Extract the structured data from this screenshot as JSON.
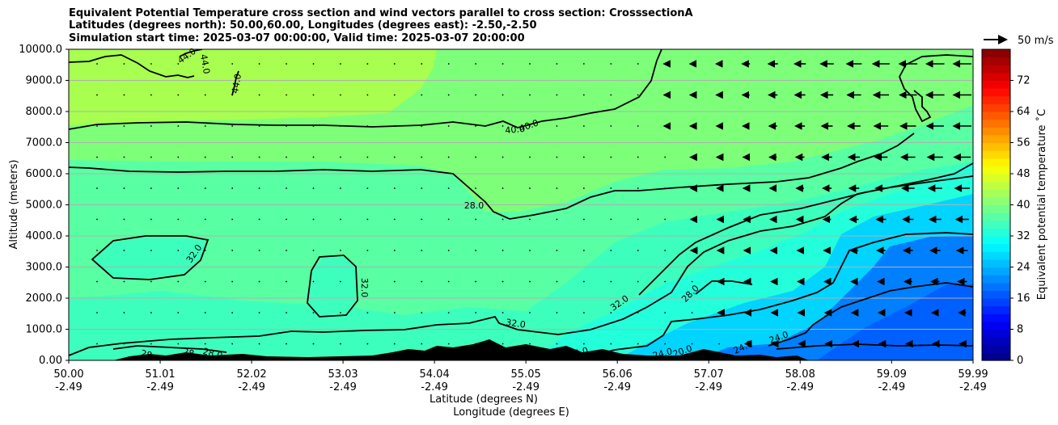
{
  "header": {
    "title_line1": "Equivalent Potential Temperature cross section and wind vectors parallel to cross section: CrosssectionA",
    "title_line2": "Latitudes (degrees north): 50.00,60.00, Longitudes (degrees east): -2.50,-2.50",
    "title_line3": "Simulation start time: 2025-03-07 00:00:00, Valid time: 2025-03-07 20:00:00"
  },
  "wind_key": {
    "label": "50 m/s"
  },
  "chart_data": {
    "type": "heatmap",
    "xlabel_line1": "Latitude (degrees N)",
    "xlabel_line2": "Longitude (degrees E)",
    "ylabel": "Altitude (meters)",
    "colorbar_label": "Equivalent potential temperature ˚C",
    "xlim": [
      50.0,
      59.99
    ],
    "ylim": [
      0,
      10000
    ],
    "x_ticks": [
      {
        "lat": "50.00",
        "lon": "-2.49",
        "value": 50.0
      },
      {
        "lat": "51.01",
        "lon": "-2.49",
        "value": 51.01
      },
      {
        "lat": "52.02",
        "lon": "-2.49",
        "value": 52.02
      },
      {
        "lat": "53.03",
        "lon": "-2.49",
        "value": 53.03
      },
      {
        "lat": "54.04",
        "lon": "-2.49",
        "value": 54.04
      },
      {
        "lat": "55.05",
        "lon": "-2.49",
        "value": 55.05
      },
      {
        "lat": "56.06",
        "lon": "-2.49",
        "value": 56.06
      },
      {
        "lat": "57.07",
        "lon": "-2.49",
        "value": 57.07
      },
      {
        "lat": "58.08",
        "lon": "-2.49",
        "value": 58.08
      },
      {
        "lat": "59.09",
        "lon": "-2.49",
        "value": 59.09
      },
      {
        "lat": "59.99",
        "lon": "-2.49",
        "value": 59.99
      }
    ],
    "y_ticks": [
      {
        "label": "0.00",
        "value": 0
      },
      {
        "label": "1000.0",
        "value": 1000
      },
      {
        "label": "2000.0",
        "value": 2000
      },
      {
        "label": "3000.0",
        "value": 3000
      },
      {
        "label": "4000.0",
        "value": 4000
      },
      {
        "label": "5000.0",
        "value": 5000
      },
      {
        "label": "6000.0",
        "value": 6000
      },
      {
        "label": "7000.0",
        "value": 7000
      },
      {
        "label": "8000.0",
        "value": 8000
      },
      {
        "label": "9000.0",
        "value": 9000
      },
      {
        "label": "10000.0",
        "value": 10000
      }
    ],
    "grid": "horizontal",
    "colorbar": {
      "min": 0,
      "max": 80,
      "step": 2,
      "tick_labels": [
        "0",
        "8",
        "16",
        "24",
        "32",
        "40",
        "48",
        "56",
        "64",
        "72"
      ],
      "tick_values": [
        0,
        8,
        16,
        24,
        32,
        40,
        48,
        56,
        64,
        72
      ],
      "colormap": "jet"
    },
    "contour_labels": [
      "44.0",
      "44.0",
      "44.0",
      "40.0",
      "40.0",
      "32.0",
      "32.0",
      "32.0",
      "32.0",
      "28.0",
      "28.0",
      "28",
      "28",
      "28.0",
      "24.0",
      "24.0",
      "24.0",
      "20.0",
      "20.0"
    ],
    "colors": {
      "terrain": "#000000",
      "contour": "#000000",
      "grid": "#b0b0b0"
    }
  }
}
